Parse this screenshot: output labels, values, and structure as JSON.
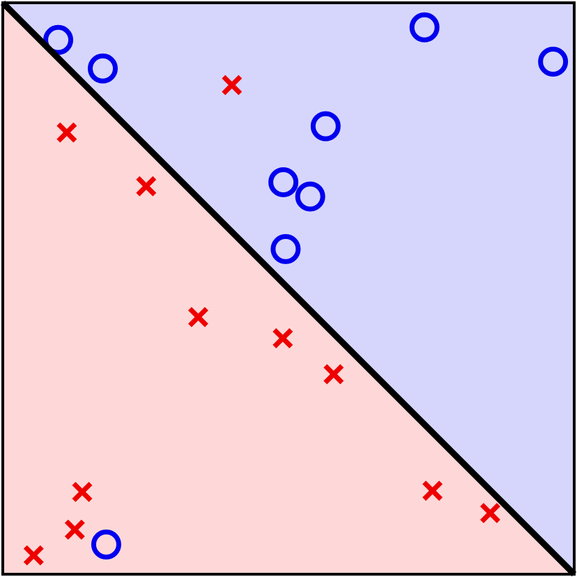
{
  "chart_data": {
    "type": "scatter",
    "title": "",
    "xlabel": "",
    "ylabel": "",
    "xlim": [
      0,
      1
    ],
    "ylim": [
      0,
      1
    ],
    "grid": false,
    "legend": "none",
    "decision_boundary": {
      "from": [
        0,
        1
      ],
      "to": [
        1,
        0
      ],
      "upper_region_color": "#d6d6fd",
      "lower_region_color": "#fed8d8"
    },
    "series": [
      {
        "marker": "o",
        "color": "#0000ee",
        "points": [
          {
            "x": 0.097,
            "y": 0.935
          },
          {
            "x": 0.175,
            "y": 0.885
          },
          {
            "x": 0.738,
            "y": 0.957
          },
          {
            "x": 0.963,
            "y": 0.897
          },
          {
            "x": 0.565,
            "y": 0.784
          },
          {
            "x": 0.491,
            "y": 0.686
          },
          {
            "x": 0.538,
            "y": 0.661
          },
          {
            "x": 0.495,
            "y": 0.569
          },
          {
            "x": 0.181,
            "y": 0.052
          }
        ]
      },
      {
        "marker": "x",
        "color": "#ee0000",
        "points": [
          {
            "x": 0.401,
            "y": 0.856
          },
          {
            "x": 0.112,
            "y": 0.773
          },
          {
            "x": 0.251,
            "y": 0.679
          },
          {
            "x": 0.342,
            "y": 0.45
          },
          {
            "x": 0.49,
            "y": 0.413
          },
          {
            "x": 0.579,
            "y": 0.35
          },
          {
            "x": 0.139,
            "y": 0.144
          },
          {
            "x": 0.126,
            "y": 0.078
          },
          {
            "x": 0.054,
            "y": 0.033
          },
          {
            "x": 0.752,
            "y": 0.146
          },
          {
            "x": 0.853,
            "y": 0.107
          }
        ]
      }
    ]
  }
}
